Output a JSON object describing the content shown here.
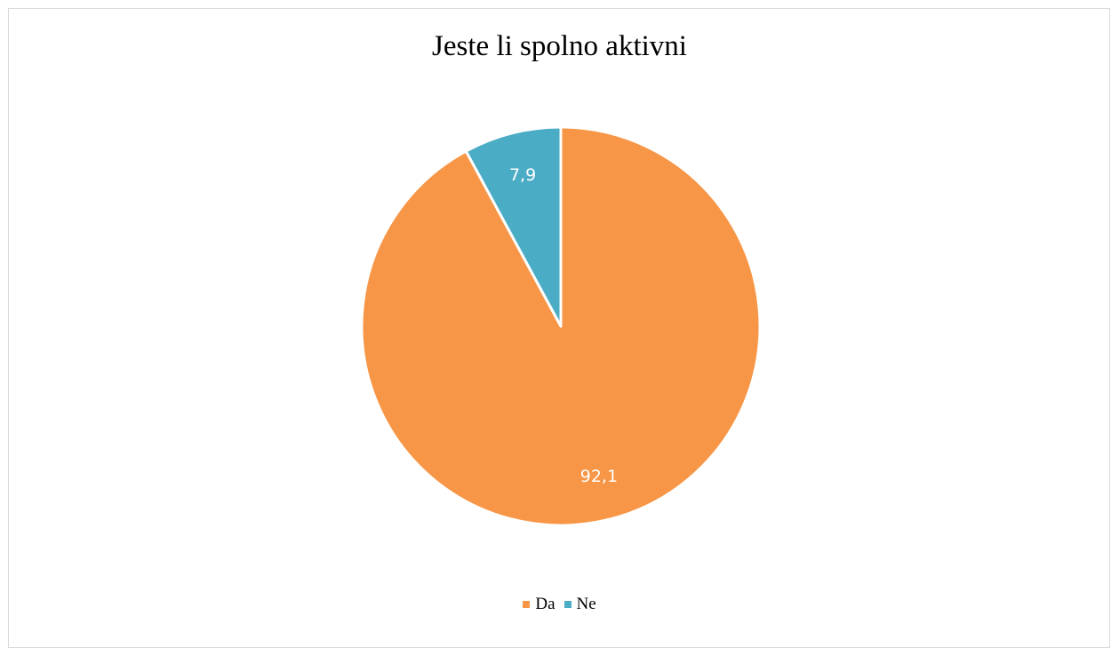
{
  "chart_data": {
    "type": "pie",
    "title": "Jeste li spolno aktivni",
    "categories": [
      "Da",
      "Ne"
    ],
    "values": [
      92.1,
      7.9
    ],
    "value_labels": [
      "92,1",
      "7,9"
    ],
    "colors": [
      "#F79646",
      "#4BACC6"
    ],
    "start_angle_deg": 0,
    "direction": "clockwise",
    "legend_position": "bottom",
    "data_label_color": "#ffffff"
  }
}
